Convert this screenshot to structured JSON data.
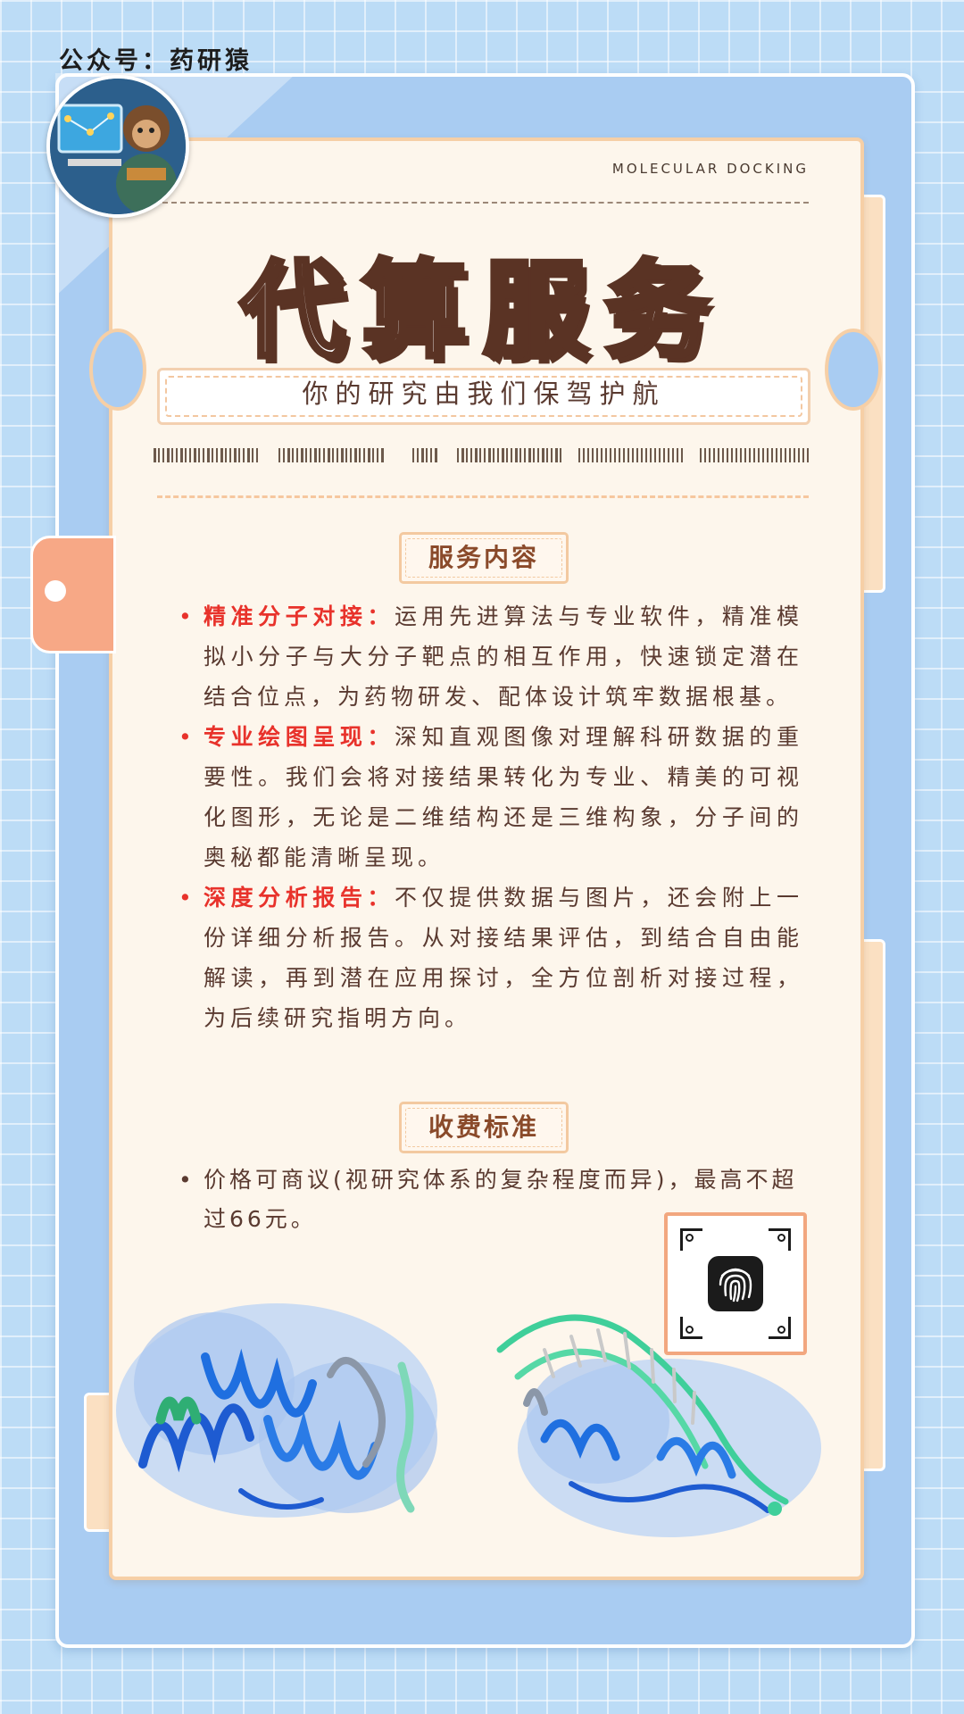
{
  "account_label": "公众号：药研猿",
  "subtitle_en": "MOLECULAR DOCKING",
  "title": "代算服务",
  "slogan": "你的研究由我们保驾护航",
  "service_section": {
    "title": "服务内容",
    "items": [
      {
        "label": "精准分子对接：",
        "text": "运用先进算法与专业软件，精准模拟小分子与大分子靶点的相互作用，快速锁定潜在结合位点，为药物研发、配体设计筑牢数据根基。"
      },
      {
        "label": "专业绘图呈现：",
        "text": "深知直观图像对理解科研数据的重要性。我们会将对接结果转化为专业、精美的可视化图形，无论是二维结构还是三维构象，分子间的奥秘都能清晰呈现。"
      },
      {
        "label": "深度分析报告：",
        "text": "不仅提供数据与图片，还会附上一份详细分析报告。从对接结果评估，到结合自由能解读，再到潜在应用探讨，全方位剖析对接过程，为后续研究指明方向。"
      }
    ]
  },
  "pricing_section": {
    "title": "收费标准",
    "text": "价格可商议(视研究体系的复杂程度而异)，最高不超过66元。"
  },
  "icons": {
    "avatar": "monkey-scientist-avatar",
    "qr": "fingerprint-qr-icon",
    "protein_left": "protein-helix-illustration",
    "protein_right": "protein-dna-illustration"
  },
  "colors": {
    "background": "#bcdcf6",
    "paper": "#fdf6ec",
    "accent_red": "#e8322b",
    "title_brown": "#5a3324"
  }
}
